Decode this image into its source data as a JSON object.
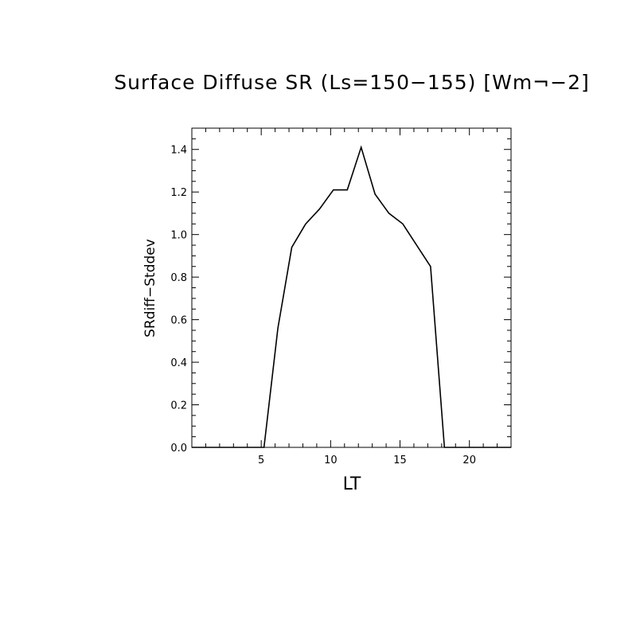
{
  "chart_data": {
    "type": "line",
    "title": "Surface Diffuse SR (Ls=150−155) [Wm¬−2]",
    "xlabel": "LT",
    "ylabel": "SRdiff−Stddev",
    "xlim": [
      0,
      23
    ],
    "ylim": [
      0,
      1.5
    ],
    "x_ticks": [
      5,
      10,
      15,
      20
    ],
    "x_tick_labels": [
      "5",
      "10",
      "15",
      "20"
    ],
    "y_ticks": [
      0,
      0.2,
      0.4,
      0.6,
      0.8,
      1.0,
      1.2,
      1.4
    ],
    "y_tick_labels": [
      "0.0",
      "0.2",
      "0.4",
      "0.6",
      "0.8",
      "1.0",
      "1.2",
      "1.4"
    ],
    "grid": false,
    "legend": "none",
    "series": [
      {
        "x": [
          0,
          1,
          2,
          3,
          4,
          5,
          5.2,
          6.2,
          7.2,
          8.2,
          9.2,
          10.2,
          11.2,
          12.2,
          13.2,
          14.2,
          15.2,
          16.2,
          17.2,
          18.2,
          19,
          20,
          21,
          22,
          23
        ],
        "values": [
          0,
          0,
          0,
          0,
          0,
          0,
          0,
          0.56,
          0.94,
          1.05,
          1.12,
          1.21,
          1.21,
          1.41,
          1.19,
          1.1,
          1.05,
          0.95,
          0.85,
          0,
          0,
          0,
          0,
          0,
          0
        ]
      }
    ]
  }
}
